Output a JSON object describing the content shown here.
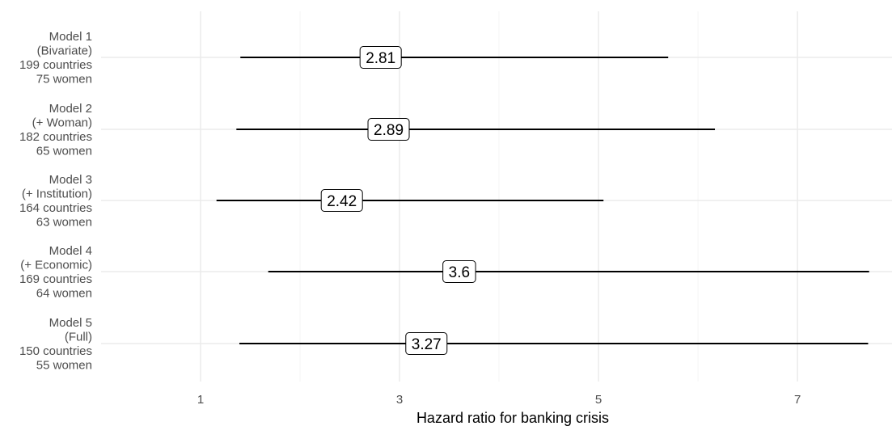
{
  "chart_data": {
    "type": "forest",
    "title": "",
    "xlabel": "Hazard ratio for banking crisis",
    "ylabel": "",
    "xlim": [
      0.0,
      7.95
    ],
    "x_ticks": [
      1,
      3,
      5,
      7
    ],
    "x_tick_labels": [
      "1",
      "3",
      "5",
      "7"
    ],
    "grid": true,
    "legend": "none",
    "models": [
      {
        "label_lines": [
          "Model 1",
          "(Bivariate)",
          "199 countries",
          "75 women"
        ],
        "estimate": 2.81,
        "estimate_label": "2.81",
        "ci_low": 1.4,
        "ci_high": 5.7
      },
      {
        "label_lines": [
          "Model 2",
          "(+ Woman)",
          "182 countries",
          "65 women"
        ],
        "estimate": 2.89,
        "estimate_label": "2.89",
        "ci_low": 1.36,
        "ci_high": 6.17
      },
      {
        "label_lines": [
          "Model 3",
          "(+ Institution)",
          "164 countries",
          "63 women"
        ],
        "estimate": 2.42,
        "estimate_label": "2.42",
        "ci_low": 1.16,
        "ci_high": 5.05
      },
      {
        "label_lines": [
          "Model 4",
          "(+ Economic)",
          "169 countries",
          "64 women"
        ],
        "estimate": 3.6,
        "estimate_label": "3.6",
        "ci_low": 1.68,
        "ci_high": 7.72
      },
      {
        "label_lines": [
          "Model 5",
          "(Full)",
          "150 countries",
          "55 women"
        ],
        "estimate": 3.27,
        "estimate_label": "3.27",
        "ci_low": 1.39,
        "ci_high": 7.71
      }
    ]
  },
  "colors": {
    "grid_major": "#ebebeb",
    "grid_minor": "#f5f5f5",
    "line": "#000000",
    "label_fill": "#ffffff",
    "label_border": "#000000"
  }
}
